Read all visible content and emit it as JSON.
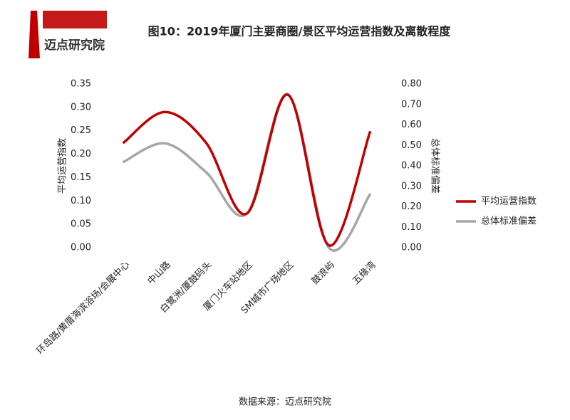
{
  "logo": "迈点研究院",
  "source": "数据来源：迈点研究院",
  "chart_data": {
    "type": "line",
    "title": "图10：2019年厦门主要商圈/景区平均运营指数及离散程度",
    "y_label": "平均运营指数",
    "y2_label": "总体标准偏差",
    "categories": [
      "环岛路/黄厝海滨浴场/会展中心",
      "中山路",
      "白鹭洲/厦鼓码头",
      "厦门火车站地区",
      "SM城市广场地区",
      "鼓浪屿",
      "五缘湾"
    ],
    "series": [
      {
        "name": "平均运营指数",
        "color": "#c00000",
        "values": [
          0.225,
          0.29,
          0.225,
          0.073,
          0.327,
          0.005,
          0.247
        ]
      },
      {
        "name": "总体标准偏差",
        "color": "#a6a6a6",
        "axis": "y2",
        "values": [
          0.42,
          0.51,
          0.37,
          0.167,
          0.75,
          0.0,
          0.26
        ]
      }
    ],
    "ylim": [
      0,
      0.35
    ],
    "yticks": [
      {
        "value": 0,
        "label": "0.00"
      },
      {
        "value": 0.05,
        "label": "0.05"
      },
      {
        "value": 0.1,
        "label": "0.10"
      },
      {
        "value": 0.15,
        "label": "0.15"
      },
      {
        "value": 0.2,
        "label": "0.20"
      },
      {
        "value": 0.25,
        "label": "0.25"
      },
      {
        "value": 0.3,
        "label": "0.30"
      },
      {
        "value": 0.35,
        "label": "0.35"
      }
    ],
    "y2lim": [
      0,
      0.8
    ],
    "y2ticks": [
      {
        "value": 0,
        "label": "0.00"
      },
      {
        "value": 0.1,
        "label": "0.10"
      },
      {
        "value": 0.2,
        "label": "0.20"
      },
      {
        "value": 0.3,
        "label": "0.30"
      },
      {
        "value": 0.4,
        "label": "0.40"
      },
      {
        "value": 0.5,
        "label": "0.50"
      },
      {
        "value": 0.6,
        "label": "0.60"
      },
      {
        "value": 0.7,
        "label": "0.70"
      },
      {
        "value": 0.8,
        "label": "0.80"
      }
    ],
    "smooth": true,
    "legend": "right"
  }
}
